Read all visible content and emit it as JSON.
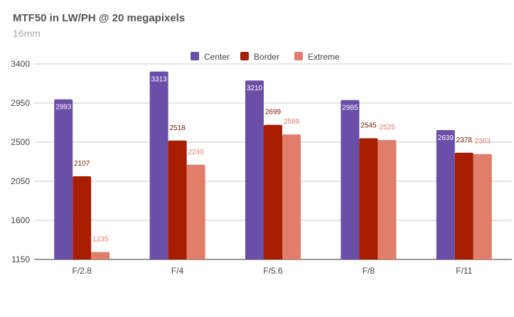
{
  "title": "MTF50 in LW/PH @ 20 megapixels",
  "subtitle": "16mm",
  "colors": {
    "Center": "#6a4fa8",
    "Border": "#a71d00",
    "Extreme": "#e07d6b"
  },
  "chart_data": {
    "type": "bar",
    "categories": [
      "F/2.8",
      "F/4",
      "F/5.6",
      "F/8",
      "F/11"
    ],
    "series": [
      {
        "name": "Center",
        "values": [
          2993,
          3313,
          3210,
          2985,
          2639
        ]
      },
      {
        "name": "Border",
        "values": [
          2107,
          2518,
          2699,
          2545,
          2378
        ]
      },
      {
        "name": "Extreme",
        "values": [
          1235,
          2240,
          2589,
          2525,
          2363
        ]
      }
    ],
    "ylim": [
      1150,
      3400
    ],
    "yticks": [
      "3400",
      "2950",
      "2500",
      "2050",
      "1600",
      "1150"
    ],
    "legend": "top",
    "grid": true
  }
}
